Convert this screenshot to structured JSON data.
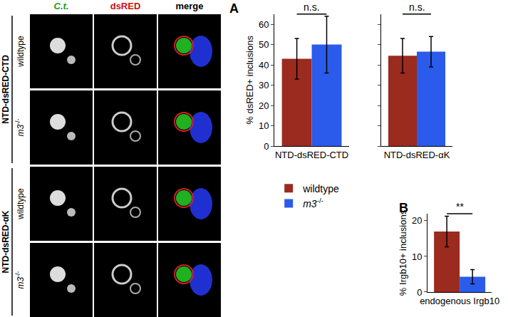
{
  "panel_labels": [
    "A",
    "B"
  ],
  "image_panel": {
    "columns": [
      "C.t.",
      "dsRED",
      "merge"
    ],
    "groups": [
      {
        "label": "NTD-dsRED-CTD",
        "rows": [
          "wildtype",
          "m3-/-"
        ]
      },
      {
        "label": "NTD-dsRED-αK",
        "rows": [
          "wildtype",
          "m3-/-"
        ]
      }
    ]
  },
  "chart_data": [
    {
      "type": "bar",
      "categories": [
        "NTD-dsRED-CTD"
      ],
      "y_label": "% dsRED+ inclusions",
      "series": [
        {
          "name": "wildtype",
          "color": "#9b2b1f",
          "values": [
            43
          ],
          "errors": [
            10
          ]
        },
        {
          "name": "m3-/-",
          "color": "#2a5bea",
          "values": [
            50
          ],
          "errors": [
            14
          ]
        }
      ],
      "ylim": [
        0,
        65
      ],
      "yticks": [
        0,
        10,
        20,
        30,
        40,
        50,
        60
      ],
      "annotations": [
        "n.s."
      ],
      "legend": "below"
    },
    {
      "type": "bar",
      "categories": [
        "NTD-dsRED-αK"
      ],
      "series": [
        {
          "name": "wildtype",
          "color": "#9b2b1f",
          "values": [
            44.5
          ],
          "errors": [
            8.5
          ]
        },
        {
          "name": "m3-/-",
          "color": "#2a5bea",
          "values": [
            46.5
          ],
          "errors": [
            7.5
          ]
        }
      ],
      "ylim": [
        0,
        65
      ],
      "yticks": [
        0,
        10,
        20,
        30,
        40,
        50,
        60
      ],
      "annotations": [
        "n.s."
      ],
      "tick_labels": "x"
    },
    {
      "type": "bar",
      "categories": [
        "endogenous Irgb10"
      ],
      "y_label": "% Irgb10+ inclusions",
      "series": [
        {
          "name": "wildtype",
          "color": "#9b2b1f",
          "values": [
            17
          ],
          "errors": [
            4.3
          ]
        },
        {
          "name": "m3-/-",
          "color": "#2a5bea",
          "values": [
            4.3
          ],
          "errors": [
            2
          ]
        }
      ],
      "ylim": [
        0,
        22
      ],
      "yticks": [
        0,
        10,
        20
      ],
      "annotations": [
        "**"
      ]
    }
  ]
}
